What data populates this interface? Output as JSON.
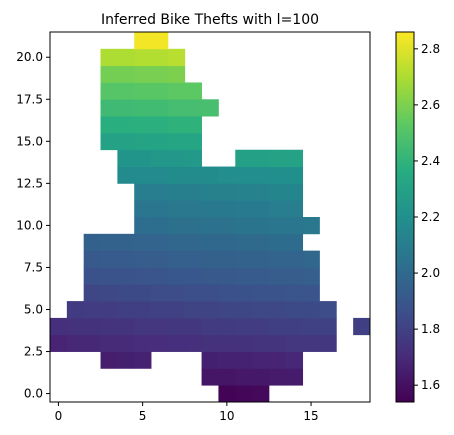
{
  "chart_data": {
    "type": "heatmap",
    "title": "Inferred Bike Thefts with l=100",
    "xlabel": "",
    "ylabel": "",
    "xlim": [
      -0.5,
      18.5
    ],
    "ylim": [
      -0.5,
      21.5
    ],
    "x_ticks": [
      0,
      5,
      10,
      15
    ],
    "x_tick_labels": [
      "0",
      "5",
      "10",
      "15"
    ],
    "y_ticks": [
      0.0,
      2.5,
      5.0,
      7.5,
      10.0,
      12.5,
      15.0,
      17.5,
      20.0
    ],
    "y_tick_labels": [
      "0.0",
      "2.5",
      "5.0",
      "7.5",
      "10.0",
      "12.5",
      "15.0",
      "17.5",
      "20.0"
    ],
    "colormap": "viridis",
    "color_range": [
      1.54,
      2.86
    ],
    "colorbar_ticks": [
      1.6,
      1.8,
      2.0,
      2.2,
      2.4,
      2.6,
      2.8
    ],
    "colorbar_tick_labels": [
      "1.6",
      "1.8",
      "2.0",
      "2.2",
      "2.4",
      "2.6",
      "2.8"
    ],
    "grid": false,
    "rows": [
      {
        "y": 0,
        "start": 10,
        "values": [
          1.55,
          1.56,
          1.57
        ]
      },
      {
        "y": 1,
        "start": 9,
        "values": [
          1.62,
          1.62,
          1.63,
          1.63,
          1.64,
          1.64
        ]
      },
      {
        "y": 2,
        "start": 3,
        "values": [
          1.65,
          1.66,
          1.67
        ]
      },
      {
        "y": 2,
        "start": 9,
        "values": [
          1.66,
          1.67,
          1.67,
          1.68,
          1.68,
          1.69
        ]
      },
      {
        "y": 3,
        "start": 0,
        "values": [
          1.68,
          1.69,
          1.69,
          1.7,
          1.7,
          1.71,
          1.71,
          1.72,
          1.72,
          1.73,
          1.73,
          1.73,
          1.74,
          1.74,
          1.75,
          1.75,
          1.76
        ]
      },
      {
        "y": 4,
        "start": 0,
        "values": [
          1.72,
          1.73,
          1.73,
          1.74,
          1.74,
          1.75,
          1.75,
          1.76,
          1.76,
          1.77,
          1.77,
          1.78,
          1.78,
          1.79,
          1.79,
          1.8,
          1.8
        ]
      },
      {
        "y": 4,
        "start": 18,
        "values": [
          1.79
        ]
      },
      {
        "y": 5,
        "start": 1,
        "values": [
          1.77,
          1.78,
          1.78,
          1.79,
          1.79,
          1.8,
          1.8,
          1.81,
          1.81,
          1.82,
          1.82,
          1.83,
          1.83,
          1.84,
          1.84,
          1.85
        ]
      },
      {
        "y": 6,
        "start": 2,
        "values": [
          1.82,
          1.83,
          1.84,
          1.84,
          1.85,
          1.85,
          1.86,
          1.86,
          1.87,
          1.87,
          1.88,
          1.88,
          1.89,
          1.89
        ]
      },
      {
        "y": 7,
        "start": 2,
        "values": [
          1.87,
          1.88,
          1.88,
          1.89,
          1.89,
          1.9,
          1.9,
          1.91,
          1.91,
          1.92,
          1.92,
          1.93,
          1.93,
          1.94
        ]
      },
      {
        "y": 8,
        "start": 2,
        "values": [
          1.91,
          1.92,
          1.92,
          1.93,
          1.93,
          1.94,
          1.94,
          1.95,
          1.95,
          1.96,
          1.96,
          1.97,
          1.97,
          1.98
        ]
      },
      {
        "y": 9,
        "start": 2,
        "values": [
          1.95,
          1.96,
          1.96,
          1.97,
          1.97,
          1.98,
          1.98,
          1.99,
          1.99,
          2.0,
          2.0,
          2.01,
          2.01
        ]
      },
      {
        "y": 10,
        "start": 5,
        "values": [
          2.02,
          2.02,
          2.03,
          2.03,
          2.04,
          2.04,
          2.05,
          2.05,
          2.06,
          2.06,
          2.07
        ]
      },
      {
        "y": 11,
        "start": 5,
        "values": [
          2.06,
          2.06,
          2.07,
          2.07,
          2.08,
          2.08,
          2.09,
          2.09,
          2.1,
          2.1
        ]
      },
      {
        "y": 12,
        "start": 5,
        "values": [
          2.1,
          2.1,
          2.11,
          2.11,
          2.12,
          2.12,
          2.13,
          2.13,
          2.14,
          2.14
        ]
      },
      {
        "y": 13,
        "start": 4,
        "values": [
          2.17,
          2.17,
          2.17,
          2.18,
          2.18,
          2.18,
          2.19,
          2.19,
          2.19,
          2.2,
          2.2
        ]
      },
      {
        "y": 14,
        "start": 4,
        "values": [
          2.23,
          2.23,
          2.24,
          2.24,
          2.25
        ]
      },
      {
        "y": 14,
        "start": 11,
        "values": [
          2.29,
          2.29,
          2.3,
          2.3
        ]
      },
      {
        "y": 15,
        "start": 3,
        "values": [
          2.3,
          2.3,
          2.31,
          2.31,
          2.32,
          2.32
        ]
      },
      {
        "y": 16,
        "start": 3,
        "values": [
          2.37,
          2.37,
          2.38,
          2.38,
          2.39,
          2.39
        ]
      },
      {
        "y": 17,
        "start": 3,
        "values": [
          2.44,
          2.44,
          2.45,
          2.45,
          2.46,
          2.46,
          2.47
        ]
      },
      {
        "y": 18,
        "start": 3,
        "values": [
          2.51,
          2.51,
          2.52,
          2.52,
          2.53,
          2.53
        ]
      },
      {
        "y": 19,
        "start": 3,
        "values": [
          2.58,
          2.58,
          2.59,
          2.59,
          2.6
        ]
      },
      {
        "y": 20,
        "start": 3,
        "values": [
          2.7,
          2.7,
          2.71,
          2.71,
          2.72
        ]
      },
      {
        "y": 21,
        "start": 5,
        "values": [
          2.84,
          2.84
        ]
      }
    ]
  }
}
